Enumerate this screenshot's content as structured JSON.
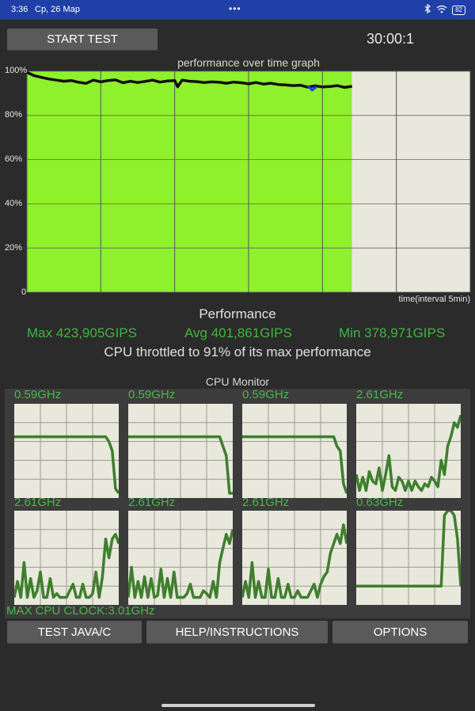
{
  "status_bar": {
    "time": "3:36",
    "date": "Ср, 26 Мар",
    "dots": "•••",
    "battery": "82"
  },
  "controls": {
    "start_label": "START TEST",
    "timer": "30:00:1"
  },
  "perf_graph": {
    "title": "performance over time graph",
    "y_ticks": [
      "100%",
      "80%",
      "60%",
      "40%",
      "20%",
      "0"
    ],
    "x_label": "time(interval 5min)",
    "elapsed_fraction": 0.733,
    "colors": {
      "fill": "#8ff02c",
      "background": "#e8e8dd",
      "line": "#111111",
      "dip": "#2040e0"
    },
    "chart_data": {
      "type": "line",
      "title": "performance over time graph",
      "xlabel": "time(interval 5min)",
      "ylabel": "",
      "ylim": [
        0,
        100
      ],
      "xlim": [
        0,
        30
      ],
      "grid": true,
      "series": [
        {
          "values": [
            [
              0,
              99.5
            ],
            [
              0.5,
              98.0
            ],
            [
              1.0,
              97.2
            ],
            [
              1.5,
              96.5
            ],
            [
              2.0,
              96.0
            ],
            [
              2.5,
              95.5
            ],
            [
              3.0,
              95.8
            ],
            [
              3.5,
              95.0
            ],
            [
              4.0,
              94.5
            ],
            [
              4.5,
              96.0
            ],
            [
              5.0,
              95.2
            ],
            [
              5.5,
              95.8
            ],
            [
              6.0,
              96.1
            ],
            [
              6.5,
              94.8
            ],
            [
              7.0,
              95.5
            ],
            [
              7.5,
              94.9
            ],
            [
              8.0,
              95.4
            ],
            [
              8.5,
              96.0
            ],
            [
              9.0,
              95.1
            ],
            [
              9.5,
              95.6
            ],
            [
              10.0,
              95.8
            ],
            [
              10.2,
              93.0
            ],
            [
              10.5,
              96.0
            ],
            [
              11.0,
              95.5
            ],
            [
              11.5,
              95.3
            ],
            [
              12.0,
              94.9
            ],
            [
              12.5,
              95.2
            ],
            [
              13.0,
              95.0
            ],
            [
              13.5,
              94.6
            ],
            [
              14.0,
              95.1
            ],
            [
              14.5,
              94.8
            ],
            [
              15.0,
              94.3
            ],
            [
              15.5,
              94.9
            ],
            [
              16.0,
              94.2
            ],
            [
              16.5,
              94.6
            ],
            [
              17.0,
              94.0
            ],
            [
              17.5,
              93.8
            ],
            [
              18.0,
              93.5
            ],
            [
              18.5,
              93.7
            ],
            [
              19.0,
              92.8
            ],
            [
              19.5,
              93.4
            ],
            [
              20.0,
              92.9
            ],
            [
              20.5,
              93.1
            ],
            [
              21.0,
              93.5
            ],
            [
              21.5,
              92.7
            ],
            [
              22.0,
              93.2
            ]
          ]
        }
      ]
    }
  },
  "performance": {
    "heading": "Performance",
    "max": "Max 423,905GIPS",
    "avg": "Avg 401,861GIPS",
    "min": "Min 378,971GIPS",
    "throttle": "CPU throttled to 91% of its max performance"
  },
  "cpu_monitor": {
    "title": "CPU Monitor",
    "max_clock": "MAX CPU CLOCK:3.01GHz",
    "cores": [
      {
        "freq": "0.59GHz",
        "trace": [
          0.35,
          0.35,
          0.35,
          0.35,
          0.35,
          0.35,
          0.35,
          0.35,
          0.35,
          0.35,
          0.35,
          0.35,
          0.35,
          0.35,
          0.35,
          0.35,
          0.35,
          0.35,
          0.35,
          0.35,
          0.35,
          0.35,
          0.35,
          0.35,
          0.35,
          0.35,
          0.35,
          0.35,
          0.35,
          0.4,
          0.5,
          0.9,
          0.95
        ]
      },
      {
        "freq": "0.59GHz",
        "trace": [
          0.35,
          0.35,
          0.35,
          0.35,
          0.35,
          0.35,
          0.35,
          0.35,
          0.35,
          0.35,
          0.35,
          0.35,
          0.35,
          0.35,
          0.35,
          0.35,
          0.35,
          0.35,
          0.35,
          0.35,
          0.35,
          0.35,
          0.35,
          0.35,
          0.35,
          0.35,
          0.35,
          0.35,
          0.35,
          0.45,
          0.55,
          0.95,
          0.95
        ]
      },
      {
        "freq": "0.59GHz",
        "trace": [
          0.35,
          0.35,
          0.35,
          0.35,
          0.35,
          0.35,
          0.35,
          0.35,
          0.35,
          0.35,
          0.35,
          0.35,
          0.35,
          0.35,
          0.35,
          0.35,
          0.35,
          0.35,
          0.35,
          0.35,
          0.35,
          0.35,
          0.35,
          0.35,
          0.35,
          0.35,
          0.35,
          0.35,
          0.35,
          0.45,
          0.5,
          0.85,
          0.95
        ]
      },
      {
        "freq": "2.61GHz",
        "trace": [
          0.75,
          0.92,
          0.78,
          0.92,
          0.72,
          0.82,
          0.85,
          0.68,
          0.92,
          0.75,
          0.55,
          0.88,
          0.92,
          0.78,
          0.82,
          0.92,
          0.82,
          0.92,
          0.82,
          0.88,
          0.92,
          0.85,
          0.88,
          0.78,
          0.82,
          0.88,
          0.6,
          0.75,
          0.45,
          0.35,
          0.2,
          0.25,
          0.12
        ]
      },
      {
        "freq": "2.61GHz",
        "trace": [
          0.92,
          0.75,
          0.92,
          0.55,
          0.92,
          0.72,
          0.92,
          0.85,
          0.65,
          0.92,
          0.92,
          0.72,
          0.92,
          0.88,
          0.92,
          0.92,
          0.92,
          0.85,
          0.78,
          0.92,
          0.92,
          0.78,
          0.92,
          0.92,
          0.88,
          0.65,
          0.92,
          0.7,
          0.3,
          0.5,
          0.3,
          0.25,
          0.35
        ]
      },
      {
        "freq": "2.61GHz",
        "trace": [
          0.92,
          0.6,
          0.92,
          0.75,
          0.92,
          0.7,
          0.92,
          0.72,
          0.92,
          0.9,
          0.62,
          0.92,
          0.72,
          0.92,
          0.65,
          0.92,
          0.92,
          0.92,
          0.88,
          0.78,
          0.92,
          0.92,
          0.92,
          0.85,
          0.88,
          0.92,
          0.75,
          0.92,
          0.55,
          0.4,
          0.25,
          0.35,
          0.2
        ]
      },
      {
        "freq": "2.61GHz",
        "trace": [
          0.92,
          0.75,
          0.92,
          0.55,
          0.92,
          0.75,
          0.92,
          0.92,
          0.62,
          0.92,
          0.92,
          0.72,
          0.92,
          0.92,
          0.78,
          0.92,
          0.92,
          0.85,
          0.92,
          0.92,
          0.92,
          0.85,
          0.78,
          0.92,
          0.78,
          0.7,
          0.65,
          0.45,
          0.35,
          0.25,
          0.35,
          0.15,
          0.35
        ]
      },
      {
        "freq": "0.63GHz",
        "trace": [
          0.8,
          0.8,
          0.8,
          0.8,
          0.8,
          0.8,
          0.8,
          0.8,
          0.8,
          0.8,
          0.8,
          0.8,
          0.8,
          0.8,
          0.8,
          0.8,
          0.8,
          0.8,
          0.8,
          0.8,
          0.8,
          0.8,
          0.8,
          0.8,
          0.8,
          0.8,
          0.8,
          0.05,
          0.0,
          0.0,
          0.05,
          0.3,
          0.8
        ]
      }
    ]
  },
  "buttons": {
    "test_label": "TEST JAVA/C",
    "help_label": "HELP/INSTRUCTIONS",
    "options_label": "OPTIONS"
  }
}
